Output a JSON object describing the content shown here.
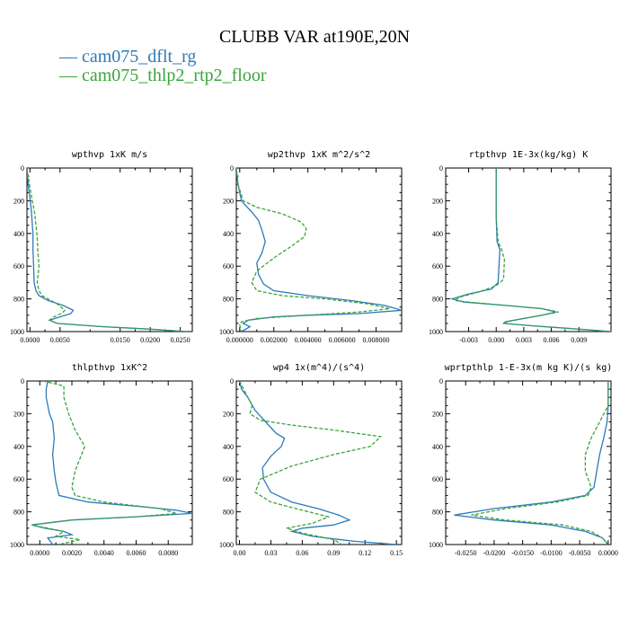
{
  "title": "CLUBB VAR at190E,20N",
  "legend": [
    {
      "label": "— cam075_dflt_rg",
      "color": "#2b7bb9"
    },
    {
      "label": "— cam075_thlp2_rtp2_floor",
      "color": "#3aa53a"
    }
  ],
  "chart_data": [
    {
      "type": "line",
      "title": "wpthvp  1xK m/s",
      "xlim": [
        -0.0005,
        0.027
      ],
      "ylim": [
        1000,
        0
      ],
      "xticks": [
        0.0,
        0.005,
        0.015,
        0.02,
        0.025
      ],
      "xtick_labels": [
        "0.0000",
        "0.0050",
        "0.0150",
        "0.0200",
        "0.0250"
      ],
      "yticks": [
        0,
        200,
        400,
        600,
        800,
        1000
      ],
      "ytick_labels": [
        "0",
        "200",
        "400",
        "600",
        "800",
        "1000"
      ],
      "series": [
        {
          "name": "cam075_dflt_rg",
          "x": [
            -0.0005,
            -0.0003,
            0.0,
            0.0002,
            0.0003,
            0.0004,
            0.0005,
            0.0005,
            0.0006,
            0.0007,
            0.001,
            0.0015,
            0.003,
            0.0055,
            0.0072,
            0.0068,
            0.005,
            0.0033,
            0.0045,
            0.012,
            0.02,
            0.026
          ],
          "y": [
            0,
            100,
            180,
            250,
            300,
            350,
            400,
            500,
            600,
            700,
            750,
            780,
            810,
            840,
            870,
            890,
            910,
            930,
            950,
            970,
            985,
            1000
          ]
        },
        {
          "name": "cam075_thlp2_rtp2_floor",
          "x": [
            -0.0005,
            0.0,
            0.0004,
            0.0008,
            0.001,
            0.0012,
            0.0013,
            0.0015,
            0.0012,
            0.0015,
            0.002,
            0.003,
            0.0045,
            0.0058,
            0.0052,
            0.004,
            0.0032,
            0.0045,
            0.012,
            0.02,
            0.026
          ],
          "y": [
            0,
            120,
            200,
            280,
            350,
            420,
            500,
            600,
            700,
            750,
            780,
            800,
            830,
            870,
            890,
            910,
            930,
            950,
            970,
            985,
            1000
          ]
        }
      ]
    },
    {
      "type": "line",
      "title": "wp2thvp  1xK m^2/s^2",
      "xlim": [
        -0.0002,
        0.0095
      ],
      "ylim": [
        1000,
        0
      ],
      "xticks": [
        0.0,
        0.002,
        0.004,
        0.006,
        0.008
      ],
      "xtick_labels": [
        "0.000000",
        "0.002000",
        "0.004000",
        "0.006000",
        "0.008000"
      ],
      "yticks": [
        0,
        200,
        400,
        600,
        800,
        1000
      ],
      "ytick_labels": [
        "0",
        "200",
        "400",
        "600",
        "800",
        "1000"
      ],
      "series": [
        {
          "name": "cam075_dflt_rg",
          "x": [
            -0.0002,
            -0.0001,
            0.0001,
            0.0008,
            0.0011,
            0.0013,
            0.0015,
            0.0013,
            0.001,
            0.0011,
            0.0014,
            0.002,
            0.004,
            0.0065,
            0.0085,
            0.0095,
            0.007,
            0.004,
            0.002,
            0.0005,
            0.0002,
            0.0006,
            0.0001
          ],
          "y": [
            0,
            100,
            200,
            280,
            320,
            380,
            450,
            520,
            580,
            650,
            710,
            750,
            780,
            810,
            840,
            870,
            890,
            900,
            910,
            930,
            950,
            970,
            1000
          ]
        },
        {
          "name": "cam075_thlp2_rtp2_floor",
          "x": [
            -0.0002,
            -0.0001,
            0.0002,
            0.001,
            0.0025,
            0.0036,
            0.0039,
            0.0038,
            0.003,
            0.002,
            0.001,
            0.0007,
            0.001,
            0.0025,
            0.005,
            0.0075,
            0.0088,
            0.007,
            0.004,
            0.001,
            0.0001,
            0.0,
            0.0001
          ],
          "y": [
            0,
            100,
            200,
            240,
            280,
            330,
            370,
            420,
            480,
            550,
            630,
            700,
            750,
            780,
            800,
            830,
            860,
            880,
            900,
            920,
            940,
            960,
            1000
          ]
        }
      ]
    },
    {
      "type": "line",
      "title": "rtpthvp  1E-3x(kg/kg) K",
      "xlim": [
        -0.0055,
        0.0125
      ],
      "ylim": [
        1000,
        0
      ],
      "xticks": [
        -0.003,
        0.0,
        0.003,
        0.006,
        0.009
      ],
      "xtick_labels": [
        "-0.003",
        "0.000",
        "0.003",
        "0.006",
        "0.009"
      ],
      "yticks": [
        0,
        200,
        400,
        600,
        800,
        1000
      ],
      "ytick_labels": [
        "0",
        "200",
        "400",
        "600",
        "800",
        "1000"
      ],
      "series": [
        {
          "name": "cam075_dflt_rg",
          "x": [
            0.0,
            0.0,
            0.0,
            0.0001,
            0.0004,
            0.0003,
            0.0002,
            -0.0005,
            -0.003,
            -0.0048,
            -0.0035,
            0.001,
            0.005,
            0.0065,
            0.005,
            0.003,
            0.001,
            0.0008,
            0.004,
            0.009,
            0.0125
          ],
          "y": [
            0,
            100,
            300,
            450,
            500,
            600,
            700,
            740,
            770,
            800,
            820,
            840,
            860,
            880,
            900,
            920,
            940,
            950,
            965,
            985,
            1000
          ]
        },
        {
          "name": "cam075_thlp2_rtp2_floor",
          "x": [
            0.0,
            0.0,
            0.0,
            0.0002,
            0.0006,
            0.0009,
            0.0008,
            0.0,
            -0.002,
            -0.004,
            -0.0045,
            -0.003,
            0.001,
            0.005,
            0.0068,
            0.005,
            0.003,
            0.0012,
            0.0008,
            0.004,
            0.009,
            0.0125
          ],
          "y": [
            0,
            100,
            300,
            450,
            500,
            560,
            680,
            720,
            760,
            790,
            810,
            820,
            840,
            860,
            880,
            900,
            920,
            940,
            950,
            965,
            985,
            1000
          ]
        }
      ]
    },
    {
      "type": "line",
      "title": "thlpthvp  1xK^2",
      "xlim": [
        -0.0008,
        0.0095
      ],
      "ylim": [
        1000,
        0
      ],
      "xticks": [
        0.0,
        0.002,
        0.004,
        0.006,
        0.008
      ],
      "xtick_labels": [
        "0.0000",
        "0.0020",
        "0.0040",
        "0.0060",
        "0.0080"
      ],
      "yticks": [
        0,
        200,
        400,
        600,
        800,
        1000
      ],
      "ytick_labels": [
        "0",
        "200",
        "400",
        "600",
        "800",
        "1000"
      ],
      "series": [
        {
          "name": "cam075_dflt_rg",
          "x": [
            0.0005,
            0.0004,
            0.0004,
            0.0005,
            0.0006,
            0.0008,
            0.0009,
            0.0008,
            0.0009,
            0.001,
            0.0012,
            0.003,
            0.0065,
            0.0085,
            0.0095,
            0.006,
            0.002,
            -0.0005,
            0.0003,
            0.0015,
            0.002,
            0.0005,
            0.0008
          ],
          "y": [
            0,
            50,
            100,
            150,
            200,
            250,
            350,
            450,
            550,
            620,
            700,
            740,
            770,
            790,
            810,
            830,
            850,
            880,
            900,
            920,
            940,
            960,
            1000
          ]
        },
        {
          "name": "cam075_thlp2_rtp2_floor",
          "x": [
            0.0002,
            0.0015,
            0.0015,
            0.0018,
            0.0022,
            0.0028,
            0.0026,
            0.0022,
            0.002,
            0.0022,
            0.004,
            0.0075,
            0.0085,
            0.006,
            0.002,
            -0.0005,
            0.0005,
            0.0015,
            0.001,
            0.0025,
            0.0012
          ],
          "y": [
            0,
            30,
            100,
            200,
            300,
            400,
            450,
            550,
            650,
            700,
            740,
            780,
            810,
            830,
            850,
            880,
            900,
            920,
            950,
            970,
            1000
          ]
        }
      ]
    },
    {
      "type": "line",
      "title": "wp4  1x(m^4)/(s^4)",
      "xlim": [
        -0.003,
        0.155
      ],
      "ylim": [
        1000,
        0
      ],
      "xticks": [
        0.0,
        0.03,
        0.06,
        0.09,
        0.12,
        0.15
      ],
      "xtick_labels": [
        "0.00",
        "0.03",
        "0.06",
        "0.09",
        "0.12",
        "0.15"
      ],
      "yticks": [
        0,
        200,
        400,
        600,
        800,
        1000
      ],
      "ytick_labels": [
        "0",
        "200",
        "400",
        "600",
        "800",
        "1000"
      ],
      "series": [
        {
          "name": "cam075_dflt_rg",
          "x": [
            0.0,
            0.002,
            0.008,
            0.015,
            0.025,
            0.035,
            0.043,
            0.04,
            0.03,
            0.022,
            0.023,
            0.03,
            0.05,
            0.075,
            0.095,
            0.105,
            0.09,
            0.06,
            0.05,
            0.07,
            0.11,
            0.15
          ],
          "y": [
            0,
            50,
            100,
            180,
            250,
            320,
            350,
            400,
            460,
            530,
            600,
            680,
            740,
            780,
            820,
            850,
            880,
            900,
            920,
            950,
            980,
            1000
          ]
        },
        {
          "name": "cam075_thlp2_rtp2_floor",
          "x": [
            0.0,
            0.008,
            0.012,
            0.01,
            0.02,
            0.05,
            0.09,
            0.135,
            0.125,
            0.09,
            0.05,
            0.02,
            0.015,
            0.03,
            0.06,
            0.085,
            0.07,
            0.045,
            0.06,
            0.09,
            0.098
          ],
          "y": [
            0,
            100,
            150,
            200,
            240,
            270,
            300,
            340,
            400,
            450,
            520,
            600,
            680,
            740,
            790,
            830,
            870,
            900,
            930,
            970,
            1000
          ]
        }
      ]
    },
    {
      "type": "line",
      "title": "wprtpthlp  1-E-3x(m kg K)/(s kg)",
      "xlim": [
        -0.0285,
        0.0005
      ],
      "ylim": [
        1000,
        0
      ],
      "xticks": [
        -0.025,
        -0.02,
        -0.015,
        -0.01,
        -0.005,
        0.0
      ],
      "xtick_labels": [
        "-0.0250",
        "-0.0200",
        "-0.0150",
        "-0.0100",
        "-0.0050",
        "0.0000"
      ],
      "yticks": [
        0,
        200,
        400,
        600,
        800,
        1000
      ],
      "ytick_labels": [
        "0",
        "200",
        "400",
        "600",
        "800",
        "1000"
      ],
      "series": [
        {
          "name": "cam075_dflt_rg",
          "x": [
            0.0,
            0.0,
            -0.0002,
            -0.0008,
            -0.0015,
            -0.002,
            -0.0025,
            -0.004,
            -0.01,
            -0.02,
            -0.027,
            -0.02,
            -0.01,
            -0.004,
            -0.001,
            0.0
          ],
          "y": [
            0,
            150,
            250,
            350,
            450,
            550,
            650,
            700,
            740,
            780,
            820,
            850,
            880,
            920,
            960,
            1000
          ]
        },
        {
          "name": "cam075_thlp2_rtp2_floor",
          "x": [
            0.0,
            0.0,
            -0.0015,
            -0.003,
            -0.004,
            -0.004,
            -0.003,
            -0.0035,
            -0.009,
            -0.018,
            -0.024,
            -0.018,
            -0.008,
            -0.003,
            -0.001,
            0.0
          ],
          "y": [
            0,
            150,
            250,
            350,
            450,
            550,
            650,
            700,
            740,
            780,
            820,
            850,
            880,
            920,
            960,
            1000
          ]
        }
      ]
    }
  ]
}
